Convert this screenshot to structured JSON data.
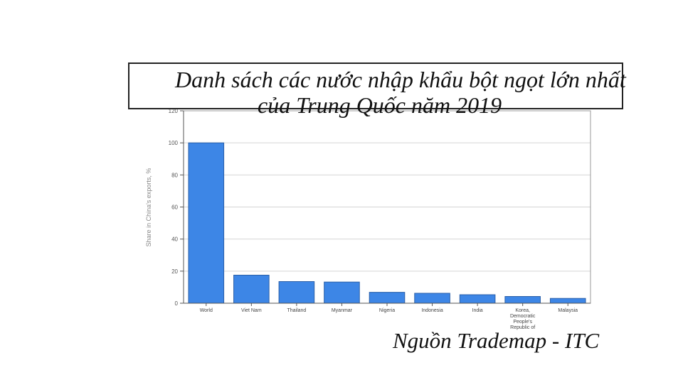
{
  "title": {
    "line1": "Danh sách các nước nhập khẩu bột ngọt lớn nhất",
    "line2": "của Trung Quốc năm 2019"
  },
  "source": "Nguồn Trademap - ITC",
  "colors": {
    "bar": "#3d86e6",
    "bar_stroke": "#2a5fa8",
    "grid": "#d4d4d4",
    "axis": "#555555"
  },
  "chart_data": {
    "type": "bar",
    "ylabel": "Share in China's exports, %",
    "xlabel": "",
    "ylim": [
      0,
      120
    ],
    "yticks": [
      0,
      20,
      40,
      60,
      80,
      100,
      120
    ],
    "grid": true,
    "categories": [
      [
        "World"
      ],
      [
        "Viet Nam"
      ],
      [
        "Thailand"
      ],
      [
        "Myanmar"
      ],
      [
        "Nigeria"
      ],
      [
        "Indonesia"
      ],
      [
        "India"
      ],
      [
        "Korea,",
        "Democratic",
        "People's",
        "Republic of"
      ],
      [
        "Malaysia"
      ]
    ],
    "values": [
      100,
      17.5,
      13.5,
      13.2,
      6.8,
      6.2,
      5.3,
      4.2,
      3.0
    ]
  }
}
